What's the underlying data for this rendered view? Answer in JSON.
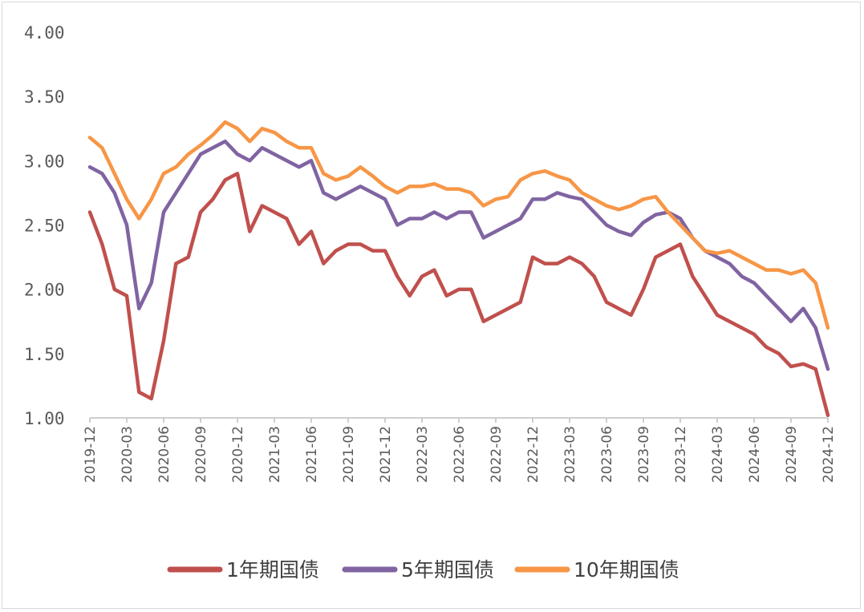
{
  "chart_data": {
    "type": "line",
    "title": "",
    "xlabel": "",
    "ylabel": "",
    "ylim": [
      1.0,
      4.0
    ],
    "yticks": [
      "1.00",
      "1.50",
      "2.00",
      "2.50",
      "3.00",
      "3.50",
      "4.00"
    ],
    "xticks": [
      "2019-12",
      "2020-03",
      "2020-06",
      "2020-09",
      "2020-12",
      "2021-03",
      "2021-06",
      "2021-09",
      "2021-12",
      "2022-03",
      "2022-06",
      "2022-09",
      "2022-12",
      "2023-03",
      "2023-06",
      "2023-09",
      "2023-12",
      "2024-03",
      "2024-06",
      "2024-09",
      "2024-12"
    ],
    "x_start": "2019-12",
    "x_frequency": "monthly",
    "grid": false,
    "legend": "bottom",
    "series": [
      {
        "name": "1年期国债",
        "color": "#C0504D",
        "values": [
          2.6,
          2.35,
          2.0,
          1.95,
          1.2,
          1.15,
          1.6,
          2.2,
          2.25,
          2.6,
          2.7,
          2.85,
          2.9,
          2.45,
          2.65,
          2.6,
          2.55,
          2.35,
          2.45,
          2.2,
          2.3,
          2.35,
          2.35,
          2.3,
          2.3,
          2.1,
          1.95,
          2.1,
          2.15,
          1.95,
          2.0,
          2.0,
          1.75,
          1.8,
          1.85,
          1.9,
          2.25,
          2.2,
          2.2,
          2.25,
          2.2,
          2.1,
          1.9,
          1.85,
          1.8,
          2.0,
          2.25,
          2.3,
          2.35,
          2.1,
          1.95,
          1.8,
          1.75,
          1.7,
          1.65,
          1.55,
          1.5,
          1.4,
          1.42,
          1.38,
          1.02
        ]
      },
      {
        "name": "5年期国债",
        "color": "#8064A2",
        "values": [
          2.95,
          2.9,
          2.75,
          2.5,
          1.85,
          2.05,
          2.6,
          2.75,
          2.9,
          3.05,
          3.1,
          3.15,
          3.05,
          3.0,
          3.1,
          3.05,
          3.0,
          2.95,
          3.0,
          2.75,
          2.7,
          2.75,
          2.8,
          2.75,
          2.7,
          2.5,
          2.55,
          2.55,
          2.6,
          2.55,
          2.6,
          2.6,
          2.4,
          2.45,
          2.5,
          2.55,
          2.7,
          2.7,
          2.75,
          2.72,
          2.7,
          2.6,
          2.5,
          2.45,
          2.42,
          2.52,
          2.58,
          2.6,
          2.55,
          2.4,
          2.3,
          2.25,
          2.2,
          2.1,
          2.05,
          1.95,
          1.85,
          1.75,
          1.85,
          1.7,
          1.38
        ]
      },
      {
        "name": "10年期国债",
        "color": "#F79646",
        "values": [
          3.18,
          3.1,
          2.9,
          2.7,
          2.55,
          2.7,
          2.9,
          2.95,
          3.05,
          3.12,
          3.2,
          3.3,
          3.25,
          3.15,
          3.25,
          3.22,
          3.15,
          3.1,
          3.1,
          2.9,
          2.85,
          2.88,
          2.95,
          2.88,
          2.8,
          2.75,
          2.8,
          2.8,
          2.82,
          2.78,
          2.78,
          2.75,
          2.65,
          2.7,
          2.72,
          2.85,
          2.9,
          2.92,
          2.88,
          2.85,
          2.75,
          2.7,
          2.65,
          2.62,
          2.65,
          2.7,
          2.72,
          2.6,
          2.5,
          2.4,
          2.3,
          2.28,
          2.3,
          2.25,
          2.2,
          2.15,
          2.15,
          2.12,
          2.15,
          2.05,
          1.7
        ]
      }
    ]
  }
}
